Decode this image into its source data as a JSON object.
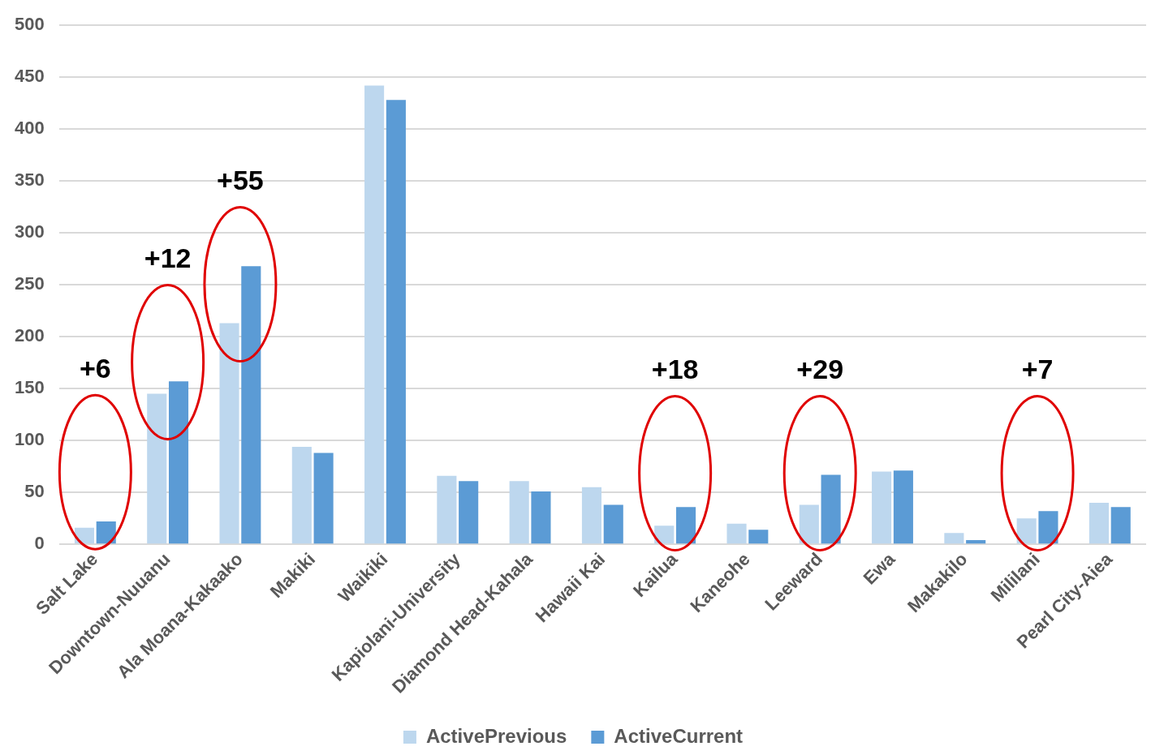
{
  "chart_data": {
    "type": "bar",
    "categories": [
      "Salt Lake",
      "Downtown-Nuuanu",
      "Ala Moana-Kakaako",
      "Makiki",
      "Waikiki",
      "Kapiolani-University",
      "Diamond Head-Kahala",
      "Hawaii Kai",
      "Kailua",
      "Kaneohe",
      "Leeward",
      "Ewa",
      "Makakilo",
      "Mililani",
      "Pearl City-Aiea"
    ],
    "series": [
      {
        "name": "ActivePrevious",
        "color": "#bdd7ee",
        "values": [
          16,
          145,
          213,
          94,
          442,
          66,
          61,
          55,
          18,
          20,
          38,
          70,
          11,
          25,
          40
        ]
      },
      {
        "name": "ActiveCurrent",
        "color": "#5b9bd5",
        "values": [
          22,
          157,
          268,
          88,
          428,
          61,
          51,
          38,
          36,
          14,
          67,
          71,
          4,
          32,
          36
        ]
      }
    ],
    "ylim": [
      0,
      500
    ],
    "yticks": [
      0,
      50,
      100,
      150,
      200,
      250,
      300,
      350,
      400,
      450,
      500
    ],
    "grid": "y",
    "legend": "bottom",
    "annotations": [
      "+6",
      "+12",
      "+55",
      "+18",
      "+29",
      "+7"
    ]
  }
}
